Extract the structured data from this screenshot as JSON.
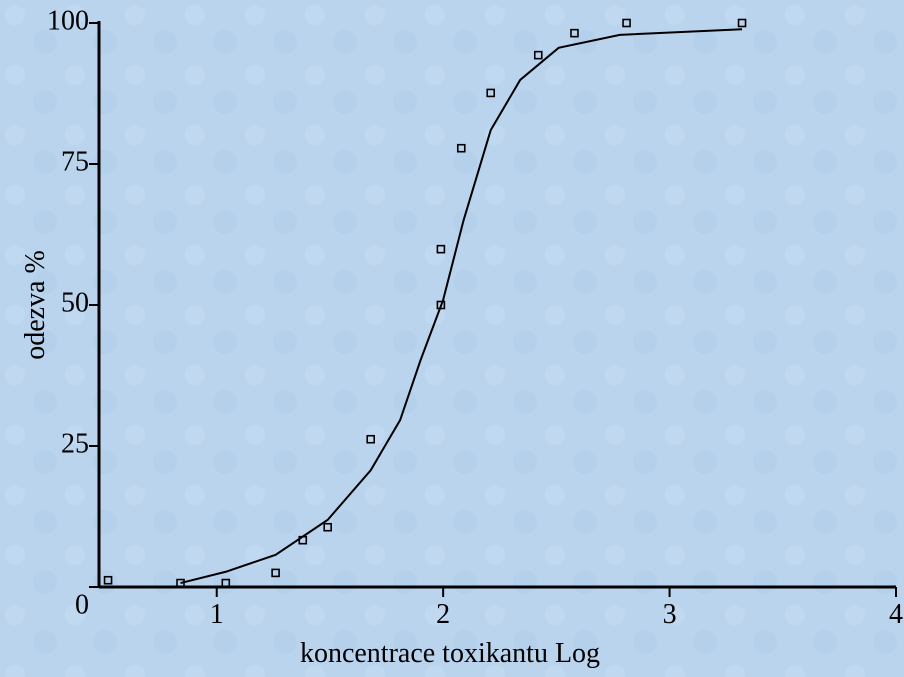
{
  "chart_data": {
    "type": "scatter",
    "xlabel": "koncentrace toxikantu Log",
    "ylabel": "odezva %",
    "xlim": [
      0.48,
      4
    ],
    "ylim": [
      0,
      100
    ],
    "xticks": [
      1,
      2,
      3,
      4
    ],
    "yticks": [
      0,
      25,
      50,
      75,
      100
    ],
    "series": [
      {
        "kind": "points",
        "color": "#000000",
        "x": [
          0.52,
          0.84,
          1.04,
          1.26,
          1.38,
          1.49,
          1.68,
          1.99,
          1.99,
          2.08,
          2.21,
          2.42,
          2.58,
          2.81,
          3.32
        ],
        "values": [
          1.2,
          0.7,
          0.7,
          2.5,
          8.3,
          10.6,
          26.2,
          59.9,
          50,
          77.8,
          87.6,
          94.3,
          98.2,
          100,
          100
        ]
      },
      {
        "kind": "line",
        "color": "#000000",
        "x": [
          0.84,
          1.04,
          1.26,
          1.49,
          1.68,
          1.81,
          1.9,
          2.0,
          2.09,
          2.21,
          2.34,
          2.51,
          2.78,
          3.32
        ],
        "values": [
          0.7,
          2.7,
          5.7,
          11.9,
          20.7,
          29.6,
          40.2,
          50.9,
          65,
          81,
          89.9,
          95.6,
          97.9,
          98.9
        ]
      }
    ]
  }
}
